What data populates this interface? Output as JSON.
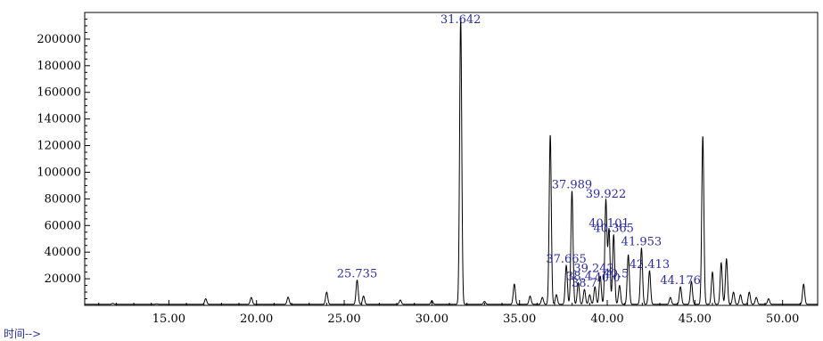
{
  "chart_data": {
    "type": "line",
    "title": "",
    "xlabel": "时间-->",
    "ylabel": "",
    "xlim": [
      10.2,
      52.0
    ],
    "ylim": [
      0,
      220000
    ],
    "x_ticks": [
      15,
      20,
      25,
      30,
      35,
      40,
      45,
      50
    ],
    "x_tick_labels": [
      "15.00",
      "20.00",
      "25.00",
      "30.00",
      "35.00",
      "40.00",
      "45.00",
      "50.00"
    ],
    "y_ticks": [
      20000,
      40000,
      60000,
      80000,
      100000,
      120000,
      140000,
      160000,
      180000,
      200000
    ],
    "y_tick_labels": [
      "20000",
      "40000",
      "60000",
      "80000",
      "100000",
      "120000",
      "140000",
      "160000",
      "180000",
      "200000"
    ],
    "baseline": 800,
    "series": [
      {
        "peaks": [
          {
            "x": 11.8,
            "y": 1500
          },
          {
            "x": 14.3,
            "y": 1200
          },
          {
            "x": 17.1,
            "y": 5000
          },
          {
            "x": 19.7,
            "y": 6000
          },
          {
            "x": 21.8,
            "y": 6200
          },
          {
            "x": 24.0,
            "y": 10000
          },
          {
            "x": 25.735,
            "y": 19000
          },
          {
            "x": 26.1,
            "y": 7000
          },
          {
            "x": 28.2,
            "y": 4000
          },
          {
            "x": 30.0,
            "y": 3500
          },
          {
            "x": 31.642,
            "y": 216000
          },
          {
            "x": 33.0,
            "y": 3000
          },
          {
            "x": 34.7,
            "y": 16000
          },
          {
            "x": 35.6,
            "y": 7000
          },
          {
            "x": 36.3,
            "y": 6000
          },
          {
            "x": 36.75,
            "y": 128000
          },
          {
            "x": 37.1,
            "y": 8000
          },
          {
            "x": 37.665,
            "y": 30000
          },
          {
            "x": 37.989,
            "y": 86000
          },
          {
            "x": 38.35,
            "y": 17000
          },
          {
            "x": 38.7,
            "y": 12000
          },
          {
            "x": 39.0,
            "y": 8000
          },
          {
            "x": 39.3,
            "y": 14000
          },
          {
            "x": 39.6,
            "y": 22000
          },
          {
            "x": 39.922,
            "y": 79000
          },
          {
            "x": 40.101,
            "y": 57000
          },
          {
            "x": 40.365,
            "y": 53000
          },
          {
            "x": 40.7,
            "y": 15000
          },
          {
            "x": 41.2,
            "y": 38000
          },
          {
            "x": 41.953,
            "y": 43000
          },
          {
            "x": 42.413,
            "y": 26000
          },
          {
            "x": 43.6,
            "y": 6000
          },
          {
            "x": 44.176,
            "y": 14000
          },
          {
            "x": 44.8,
            "y": 18000
          },
          {
            "x": 45.45,
            "y": 127000
          },
          {
            "x": 46.0,
            "y": 25000
          },
          {
            "x": 46.5,
            "y": 32000
          },
          {
            "x": 46.8,
            "y": 35000
          },
          {
            "x": 47.2,
            "y": 10000
          },
          {
            "x": 47.6,
            "y": 8000
          },
          {
            "x": 48.1,
            "y": 10000
          },
          {
            "x": 48.5,
            "y": 6000
          },
          {
            "x": 49.2,
            "y": 5000
          },
          {
            "x": 51.2,
            "y": 16000
          }
        ]
      }
    ],
    "peak_labels": [
      {
        "text": "31.642",
        "x": 31.642,
        "y": 216000
      },
      {
        "text": "25.735",
        "x": 25.735,
        "y": 19000
      },
      {
        "text": "37.989",
        "x": 37.989,
        "y": 86000
      },
      {
        "text": "39.922",
        "x": 39.922,
        "y": 79000
      },
      {
        "text": "40.101",
        "x": 40.101,
        "y": 57000
      },
      {
        "text": "40.365",
        "x": 40.365,
        "y": 53000
      },
      {
        "text": "41.953",
        "x": 41.953,
        "y": 43000
      },
      {
        "text": "37.665",
        "x": 37.665,
        "y": 30000
      },
      {
        "text": "39.242",
        "x": 39.242,
        "y": 23000
      },
      {
        "text": "42.413",
        "x": 42.413,
        "y": 26000
      },
      {
        "text": "44.176",
        "x": 44.176,
        "y": 14000
      },
      {
        "text": "38.4",
        "x": 38.4,
        "y": 17000
      },
      {
        "text": "38.7",
        "x": 38.7,
        "y": 12000
      },
      {
        "text": "40.0",
        "x": 40.0,
        "y": 16000
      },
      {
        "text": "40.5",
        "x": 40.5,
        "y": 19000
      }
    ],
    "colors": {
      "line": "#000000",
      "label": "#2b2b9a",
      "axis_title": "#2b2b9a"
    }
  }
}
